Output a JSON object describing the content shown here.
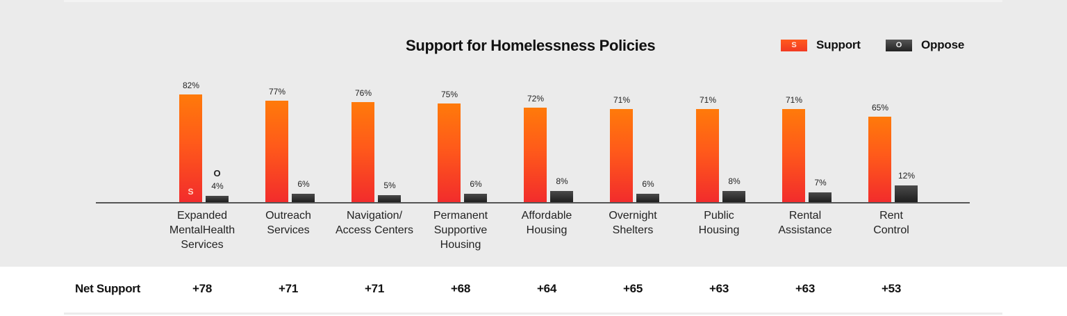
{
  "chart": {
    "title": "Support for Homelessness Policies",
    "legend": [
      {
        "key": "S",
        "label": "Support",
        "color": "#ff5a1e"
      },
      {
        "key": "O",
        "label": "Oppose",
        "color": "#2a2a2a"
      }
    ],
    "bar_markers": {
      "support": "S",
      "oppose": "O"
    }
  },
  "categories": [
    {
      "label": "Expanded MentalHealth Services",
      "support": "82%",
      "oppose": "4%",
      "net": "+78"
    },
    {
      "label": "Outreach Services",
      "support": "77%",
      "oppose": "6%",
      "net": "+71"
    },
    {
      "label": "Navigation/ Access Centers",
      "support": "76%",
      "oppose": "5%",
      "net": "+71"
    },
    {
      "label": "Permanent Supportive Housing",
      "support": "75%",
      "oppose": "6%",
      "net": "+68"
    },
    {
      "label": "Affordable Housing",
      "support": "72%",
      "oppose": "8%",
      "net": "+64"
    },
    {
      "label": "Overnight Shelters",
      "support": "71%",
      "oppose": "6%",
      "net": "+65"
    },
    {
      "label": "Public Housing",
      "support": "71%",
      "oppose": "8%",
      "net": "+63"
    },
    {
      "label": "Rental Assistance",
      "support": "71%",
      "oppose": "7%",
      "net": "+63"
    },
    {
      "label": "Rent Control",
      "support": "65%",
      "oppose": "12%",
      "net": "+53"
    }
  ],
  "net_row": {
    "label": "Net Support"
  },
  "chart_data": {
    "type": "bar",
    "title": "Support for Homelessness Policies",
    "categories": [
      "Expanded MentalHealth Services",
      "Outreach Services",
      "Navigation/ Access Centers",
      "Permanent Supportive Housing",
      "Affordable Housing",
      "Overnight Shelters",
      "Public Housing",
      "Rental Assistance",
      "Rent Control"
    ],
    "series": [
      {
        "name": "Support",
        "values": [
          82,
          77,
          76,
          75,
          72,
          71,
          71,
          71,
          65
        ]
      },
      {
        "name": "Oppose",
        "values": [
          4,
          6,
          5,
          6,
          8,
          6,
          8,
          7,
          12
        ]
      }
    ],
    "table": {
      "row_label": "Net Support",
      "values": [
        "+78",
        "+71",
        "+71",
        "+68",
        "+64",
        "+65",
        "+63",
        "+63",
        "+53"
      ]
    },
    "xlabel": "",
    "ylabel": "",
    "ylim": [
      0,
      100
    ],
    "value_suffix": "%",
    "grid": false,
    "legend_position": "top-right"
  }
}
